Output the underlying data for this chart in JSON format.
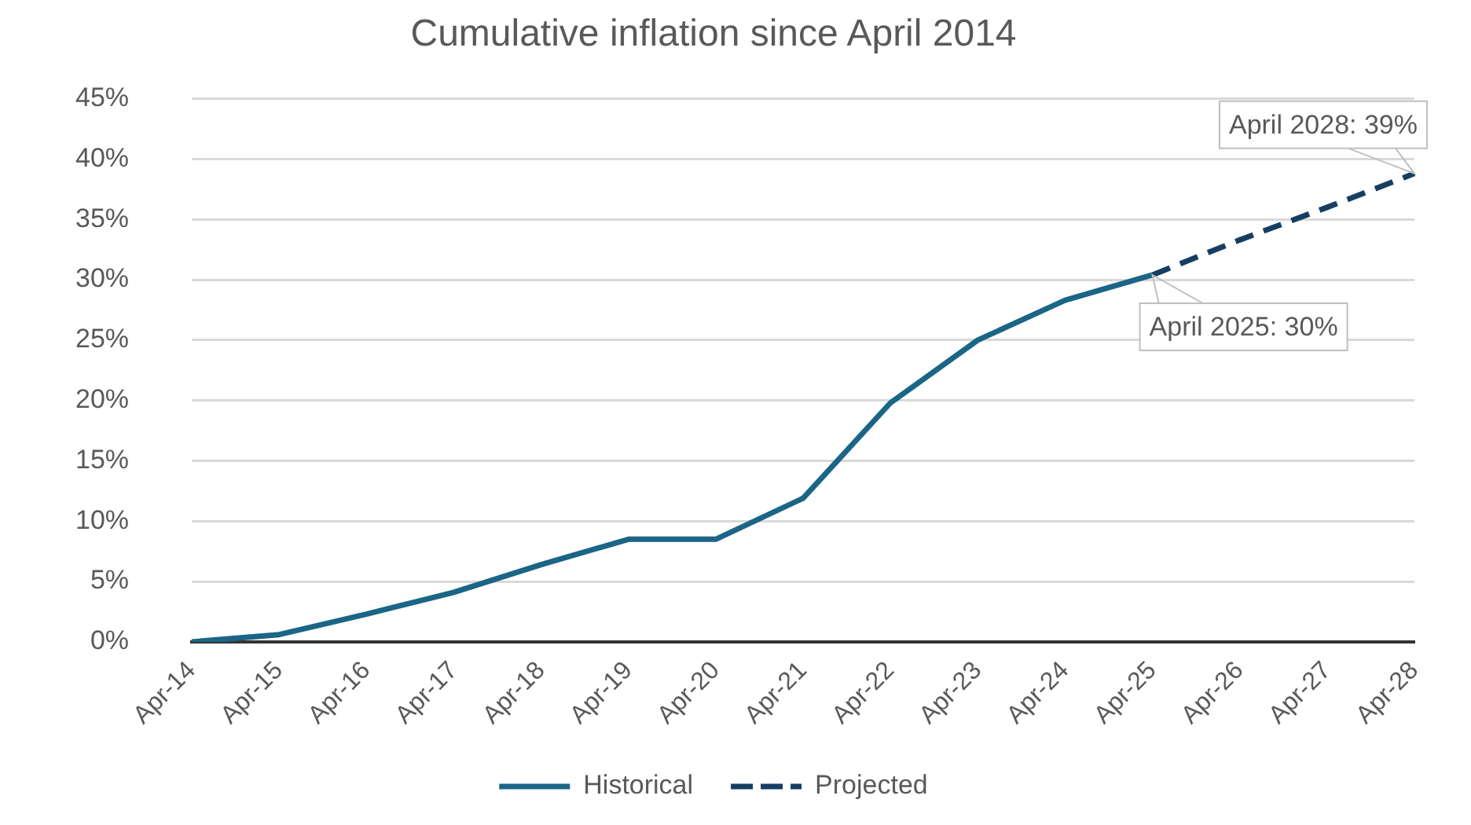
{
  "chart_data": {
    "type": "line",
    "title": "Cumulative inflation since April 2014",
    "categories": [
      "Apr-14",
      "Apr-15",
      "Apr-16",
      "Apr-17",
      "Apr-18",
      "Apr-19",
      "Apr-20",
      "Apr-21",
      "Apr-22",
      "Apr-23",
      "Apr-24",
      "Apr-25",
      "Apr-26",
      "Apr-27",
      "Apr-28"
    ],
    "series": [
      {
        "name": "Historical",
        "color": "#1b6586",
        "line_style": "solid",
        "values": [
          0,
          0.6,
          2.3,
          4.1,
          6.4,
          8.5,
          8.5,
          11.9,
          19.8,
          25.0,
          28.3,
          30.4,
          null,
          null,
          null
        ]
      },
      {
        "name": "Projected",
        "color": "#163e62",
        "line_style": "dashed",
        "values": [
          null,
          null,
          null,
          null,
          null,
          null,
          null,
          null,
          null,
          null,
          null,
          30.4,
          33.3,
          36.0,
          38.8
        ]
      }
    ],
    "ylim": [
      0,
      45
    ],
    "yticks": [
      {
        "value": 0,
        "label": "0%"
      },
      {
        "value": 5,
        "label": "5%"
      },
      {
        "value": 10,
        "label": "10%"
      },
      {
        "value": 15,
        "label": "15%"
      },
      {
        "value": 20,
        "label": "20%"
      },
      {
        "value": 25,
        "label": "25%"
      },
      {
        "value": 30,
        "label": "30%"
      },
      {
        "value": 35,
        "label": "35%"
      },
      {
        "value": 40,
        "label": "40%"
      },
      {
        "value": 45,
        "label": "45%"
      }
    ],
    "grid": "y",
    "legend": "bottom",
    "marker": "none",
    "annotations": [
      {
        "text": "April 2028: 39%",
        "x": "Apr-28",
        "y": 38.8
      },
      {
        "text": "April 2025: 30%",
        "x": "Apr-25",
        "y": 30.4
      }
    ]
  }
}
